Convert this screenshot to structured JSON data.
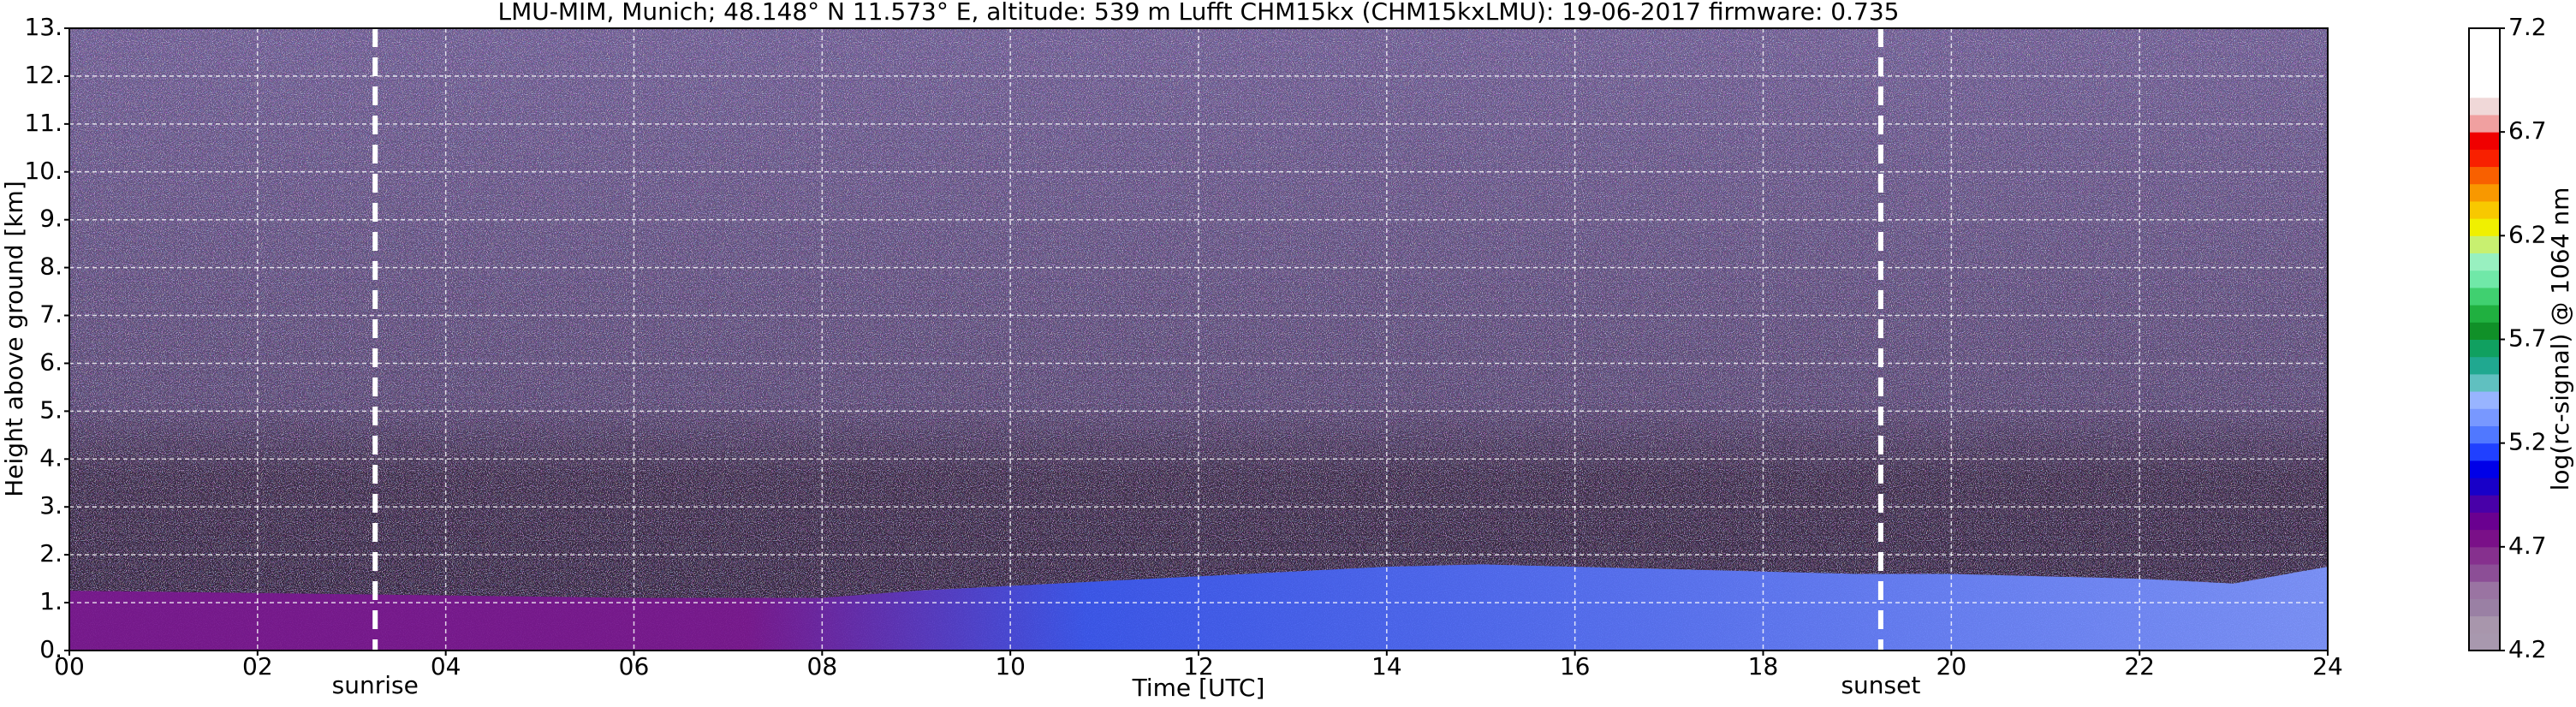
{
  "chart_data": {
    "type": "heatmap",
    "title": "LMU-MIM, Munich; 48.148° N 11.573° E, altitude: 539 m    Lufft CHM15kx (CHM15kxLMU): 19-06-2017    firmware: 0.735",
    "xlabel": "Time [UTC]",
    "ylabel": "Height above ground [km]",
    "xlim": [
      0,
      24
    ],
    "xticks": [
      {
        "value": 0,
        "label": "00"
      },
      {
        "value": 2,
        "label": "02"
      },
      {
        "value": 4,
        "label": "04"
      },
      {
        "value": 6,
        "label": "06"
      },
      {
        "value": 8,
        "label": "08"
      },
      {
        "value": 10,
        "label": "10"
      },
      {
        "value": 12,
        "label": "12"
      },
      {
        "value": 14,
        "label": "14"
      },
      {
        "value": 16,
        "label": "16"
      },
      {
        "value": 18,
        "label": "18"
      },
      {
        "value": 20,
        "label": "20"
      },
      {
        "value": 22,
        "label": "22"
      },
      {
        "value": 24,
        "label": "24"
      }
    ],
    "ylim": [
      0,
      13
    ],
    "yticks": [
      {
        "value": 0,
        "label": "0."
      },
      {
        "value": 1,
        "label": "1."
      },
      {
        "value": 2,
        "label": "2."
      },
      {
        "value": 3,
        "label": "3."
      },
      {
        "value": 4,
        "label": "4."
      },
      {
        "value": 5,
        "label": "5."
      },
      {
        "value": 6,
        "label": "6."
      },
      {
        "value": 7,
        "label": "7."
      },
      {
        "value": 8,
        "label": "8."
      },
      {
        "value": 9,
        "label": "9."
      },
      {
        "value": 10,
        "label": "10."
      },
      {
        "value": 11,
        "label": "11."
      },
      {
        "value": 12,
        "label": "12."
      },
      {
        "value": 13,
        "label": "13."
      }
    ],
    "grid": true,
    "aerosol_layer": {
      "x": [
        0,
        2,
        4,
        6,
        8,
        9,
        10,
        11,
        12,
        13,
        14,
        15,
        16,
        17,
        18,
        19,
        20,
        21,
        22,
        23,
        24
      ],
      "values": [
        1.25,
        1.2,
        1.15,
        1.1,
        1.1,
        1.25,
        1.35,
        1.45,
        1.55,
        1.65,
        1.75,
        1.8,
        1.75,
        1.7,
        1.65,
        1.6,
        1.6,
        1.55,
        1.5,
        1.4,
        1.75
      ],
      "colors": [
        "#7a1890",
        "#3a58f0",
        "#7d96ff"
      ]
    },
    "annotations": [
      {
        "text": "sunrise",
        "x": 3.25
      },
      {
        "text": "sunset",
        "x": 19.25
      }
    ],
    "colorbar": {
      "label": "log(rc-signal) @ 1064 nm",
      "lim": [
        4.2,
        7.2
      ],
      "ticks": [
        4.2,
        4.7,
        5.2,
        5.7,
        6.2,
        6.7,
        7.2
      ],
      "colors": [
        "#a898ae",
        "#a896ac",
        "#9a80a4",
        "#9a74a2",
        "#8c4e96",
        "#86308e",
        "#7a1088",
        "#6a0090",
        "#4800a8",
        "#1800c8",
        "#0000e8",
        "#2040ff",
        "#5078ff",
        "#7898ff",
        "#98b4ff",
        "#60c0c0",
        "#20a890",
        "#10a060",
        "#109028",
        "#20b040",
        "#40d070",
        "#70e8a8",
        "#98f0c0",
        "#c8f070",
        "#f0f000",
        "#f8c800",
        "#f89800",
        "#f86000",
        "#f82000",
        "#f00000",
        "#f0a0a0",
        "#f0d8d8",
        "#ffffff",
        "#ffffff",
        "#ffffff",
        "#ffffff"
      ]
    }
  }
}
